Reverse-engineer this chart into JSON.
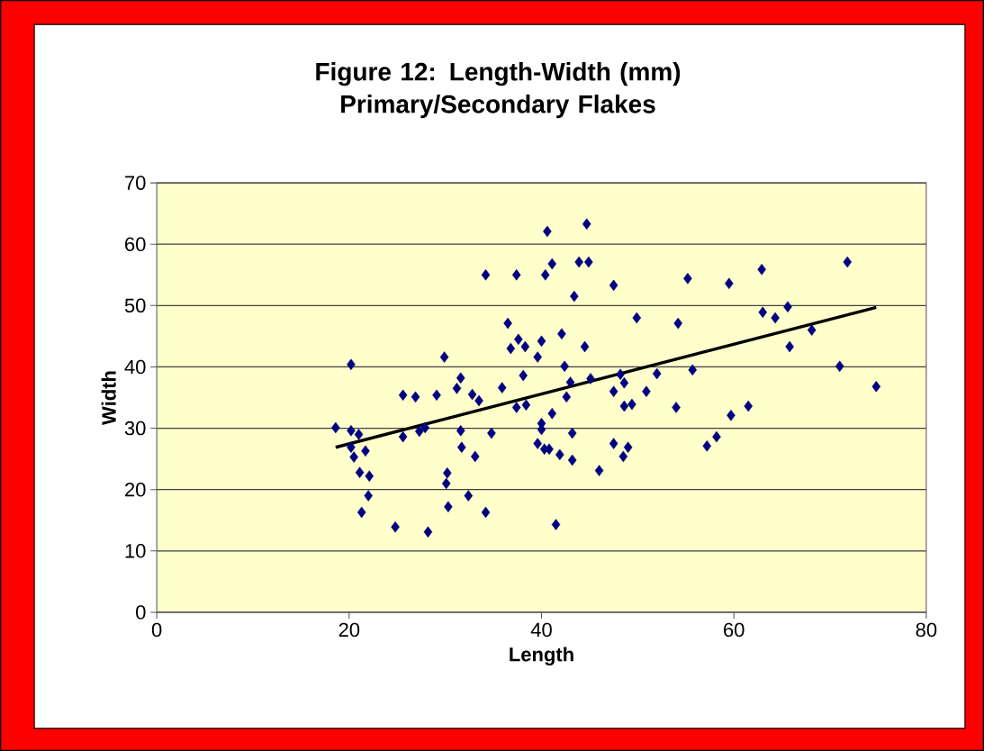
{
  "chart_data": {
    "type": "scatter",
    "title": "Figure 12: Length-Width (mm) Primary/Secondary Flakes",
    "xlabel": "Length",
    "ylabel": "Width",
    "xlim": [
      0,
      80
    ],
    "ylim": [
      0,
      70
    ],
    "xticks": [
      0,
      20,
      40,
      60,
      80
    ],
    "yticks": [
      0,
      10,
      20,
      30,
      40,
      50,
      60,
      70
    ],
    "grid": "y",
    "marker": "diamond",
    "series": [
      {
        "color": "#000080",
        "x": [
          18.6,
          20.2,
          20.2,
          21.0,
          20.2,
          20.5,
          21.1,
          22.1,
          21.7,
          22.0,
          21.3,
          24.8,
          25.6,
          25.6,
          26.9,
          28.2,
          27.3,
          27.9,
          29.1,
          29.9,
          30.2,
          30.1,
          30.3,
          31.6,
          31.2,
          31.6,
          31.7,
          33.1,
          32.4,
          34.2,
          32.8,
          33.5,
          34.2,
          34.8,
          35.9,
          36.5,
          37.4,
          36.8,
          37.6,
          38.3,
          38.1,
          37.4,
          38.4,
          40.6,
          44.7,
          40.4,
          41.1,
          43.9,
          44.9,
          47.5,
          43.4,
          55.2,
          49.9,
          54.2,
          40.0,
          42.1,
          44.5,
          39.6,
          42.4,
          43.0,
          45.1,
          42.6,
          47.5,
          48.2,
          48.6,
          52.0,
          50.9,
          55.7,
          54.0,
          48.6,
          49.4,
          41.1,
          40.0,
          40.0,
          43.2,
          39.6,
          40.3,
          40.8,
          41.9,
          43.2,
          46.0,
          47.5,
          49.0,
          48.5,
          41.5,
          57.2,
          58.2,
          59.5,
          62.9,
          71.8,
          63.0,
          64.3,
          65.6,
          68.1,
          65.8,
          71.0,
          74.8,
          61.5,
          59.7
        ],
        "values": [
          30.1,
          40.4,
          29.6,
          29.0,
          26.9,
          25.3,
          22.8,
          22.2,
          26.3,
          19.0,
          16.3,
          13.9,
          35.4,
          28.6,
          35.1,
          13.1,
          29.5,
          30.1,
          35.4,
          41.6,
          22.7,
          21.0,
          17.2,
          38.2,
          36.5,
          29.6,
          26.9,
          25.4,
          19.0,
          16.3,
          35.5,
          34.5,
          55.0,
          29.2,
          36.6,
          47.1,
          55.0,
          43.0,
          44.5,
          43.3,
          38.6,
          33.4,
          33.8,
          62.1,
          63.3,
          55.0,
          56.8,
          57.1,
          57.1,
          53.3,
          51.5,
          54.4,
          48.0,
          47.1,
          44.2,
          45.4,
          43.3,
          41.6,
          40.1,
          37.5,
          38.1,
          35.1,
          36.0,
          38.8,
          37.4,
          38.9,
          36.0,
          39.5,
          33.4,
          33.6,
          33.9,
          32.4,
          30.8,
          29.8,
          29.2,
          27.5,
          26.6,
          26.6,
          25.7,
          24.8,
          23.1,
          27.5,
          26.9,
          25.4,
          14.3,
          27.1,
          28.6,
          53.6,
          55.9,
          57.1,
          48.9,
          48.0,
          49.8,
          46.0,
          43.3,
          40.1,
          36.8,
          33.6,
          32.1
        ]
      },
      {
        "type": "line",
        "color": "#000000",
        "marker": "none",
        "x": [
          18.6,
          74.8
        ],
        "values": [
          26.9,
          49.7
        ]
      }
    ]
  }
}
